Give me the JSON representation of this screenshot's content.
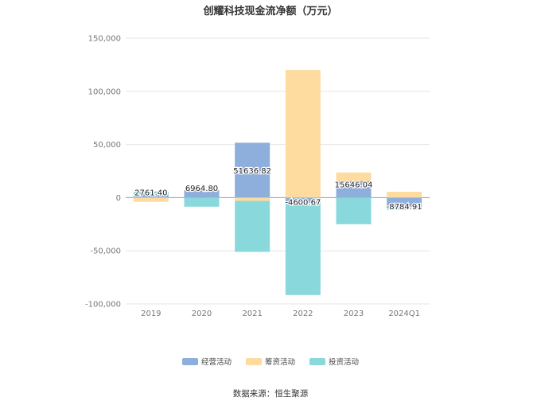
{
  "chart_data": {
    "type": "bar",
    "stacked": true,
    "title": "创耀科技现金流净额（万元）",
    "source": "数据来源：恒生聚源",
    "categories": [
      "2019",
      "2020",
      "2021",
      "2022",
      "2023",
      "2024Q1"
    ],
    "ylim": [
      -100000,
      150000
    ],
    "yticks": [
      150000,
      100000,
      50000,
      0,
      -50000,
      -100000
    ],
    "ytick_labels": [
      "150,000",
      "100,000",
      "50,000",
      "0",
      "-50,000",
      "-100,000"
    ],
    "grid": true,
    "legend_position": "bottom",
    "series": [
      {
        "name": "经营活动",
        "color": "#8eaedc",
        "values": [
          2761.4,
          6964.8,
          51636.82,
          -4600.67,
          15646.04,
          -8784.91
        ]
      },
      {
        "name": "筹资活动",
        "color": "#fedb9e",
        "values": [
          -4000,
          0,
          -3000,
          120000,
          8000,
          5500
        ]
      },
      {
        "name": "投资活动",
        "color": "#88d8dc",
        "values": [
          3000,
          -8500,
          -48000,
          -87000,
          -25000,
          -2500
        ]
      }
    ],
    "data_labels": [
      "2761.40",
      "6964.80",
      "51636.82",
      "-4600.67",
      "15646.04",
      "-8784.91"
    ]
  }
}
